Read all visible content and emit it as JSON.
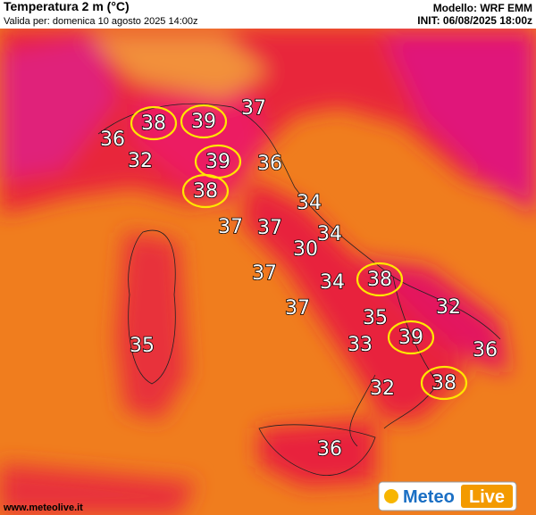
{
  "header": {
    "title": "Temperatura 2 m (°C)",
    "valid": "Valida per: domenica 10 agosto 2025 14:00z",
    "model": "Modello: WRF EMM",
    "init": "INIT: 06/08/2025 18:00z"
  },
  "labels": [
    {
      "value": 38,
      "highlight": true
    },
    {
      "value": 39,
      "highlight": true
    },
    {
      "value": 37,
      "highlight": false
    },
    {
      "value": 36,
      "highlight": false
    },
    {
      "value": 32,
      "highlight": false
    },
    {
      "value": 39,
      "highlight": true
    },
    {
      "value": 36,
      "highlight": false
    },
    {
      "value": 38,
      "highlight": true
    },
    {
      "value": 34,
      "highlight": false
    },
    {
      "value": 37,
      "highlight": false
    },
    {
      "value": 37,
      "highlight": false
    },
    {
      "value": 34,
      "highlight": false
    },
    {
      "value": 30,
      "highlight": false
    },
    {
      "value": 37,
      "highlight": false
    },
    {
      "value": 34,
      "highlight": false
    },
    {
      "value": 38,
      "highlight": true
    },
    {
      "value": 37,
      "highlight": false
    },
    {
      "value": 32,
      "highlight": false
    },
    {
      "value": 35,
      "highlight": false
    },
    {
      "value": 39,
      "highlight": true
    },
    {
      "value": 33,
      "highlight": false
    },
    {
      "value": 36,
      "highlight": false
    },
    {
      "value": 35,
      "highlight": false
    },
    {
      "value": 32,
      "highlight": false
    },
    {
      "value": 38,
      "highlight": true
    },
    {
      "value": 36,
      "highlight": false
    }
  ],
  "logo": {
    "meteo": "Meteo",
    "live": "Live"
  },
  "url": "www.meteolive.it"
}
